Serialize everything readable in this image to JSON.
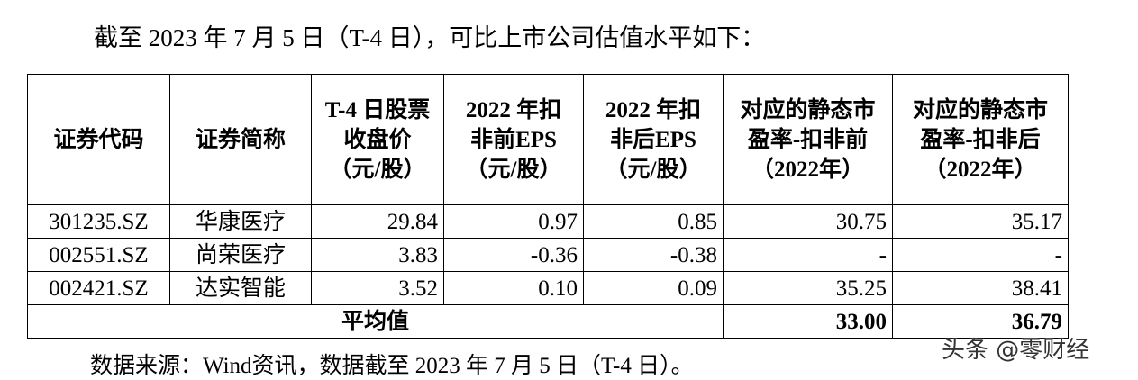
{
  "intro": "截至 2023 年 7 月 5 日（T-4 日），可比上市公司估值水平如下：",
  "table": {
    "header": [
      "证券代码",
      "证券简称",
      "T-4 日股票收盘价（元/股）",
      "2022 年扣非前EPS（元/股）",
      "2022 年扣非后EPS（元/股）",
      "对应的静态市盈率-扣非前（2022年）",
      "对应的静态市盈率-扣非后（2022年）"
    ],
    "rows": [
      [
        "301235.SZ",
        "华康医疗",
        "29.84",
        "0.97",
        "0.85",
        "30.75",
        "35.17"
      ],
      [
        "002551.SZ",
        "尚荣医疗",
        "3.83",
        "-0.36",
        "-0.38",
        "-",
        "-"
      ],
      [
        "002421.SZ",
        "达实智能",
        "3.52",
        "0.10",
        "0.09",
        "35.25",
        "38.41"
      ]
    ],
    "average": {
      "label": "平均值",
      "values": [
        "33.00",
        "36.79"
      ]
    }
  },
  "source": "数据来源：Wind资讯，数据截至 2023 年 7 月 5 日（T-4 日）。",
  "watermark": "头条 @零财经"
}
